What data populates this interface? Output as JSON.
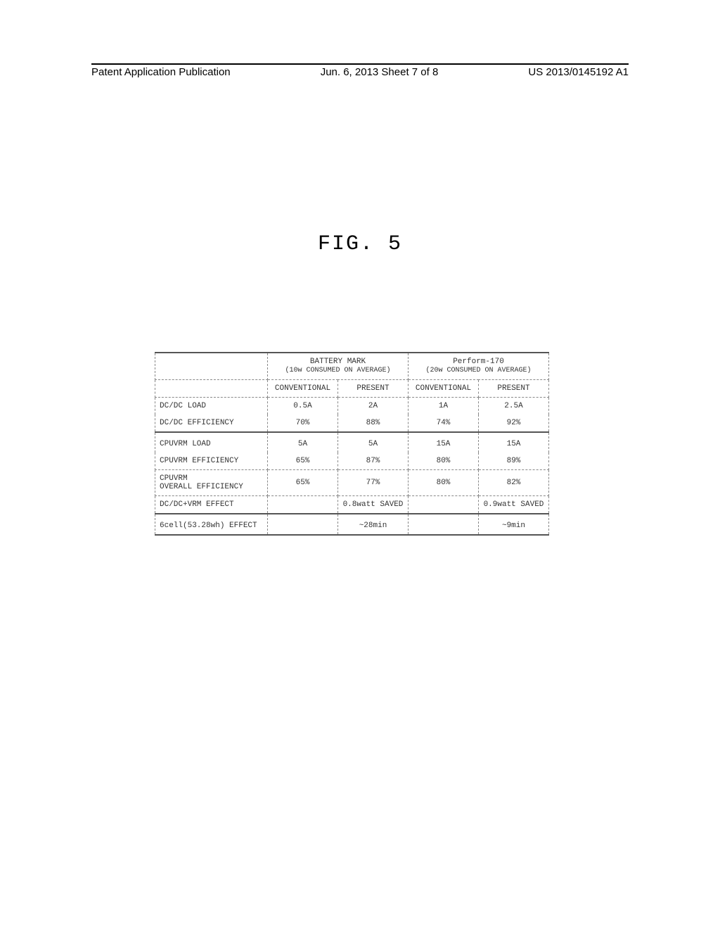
{
  "header": {
    "left": "Patent Application Publication",
    "center": "Jun. 6, 2013  Sheet 7 of 8",
    "right": "US 2013/0145192 A1"
  },
  "figure_label": "FIG. 5",
  "table": {
    "group_headers": {
      "g1_title": "BATTERY MARK",
      "g1_sub": "(10w CONSUMED ON AVERAGE)",
      "g2_title": "Perform-170",
      "g2_sub": "(20w CONSUMED ON AVERAGE)"
    },
    "sub_headers": {
      "c1": "CONVENTIONAL",
      "c2": "PRESENT",
      "c3": "CONVENTIONAL",
      "c4": "PRESENT"
    },
    "rows": {
      "r1": {
        "label": "DC/DC LOAD",
        "c1": "0.5A",
        "c2": "2A",
        "c3": "1A",
        "c4": "2.5A"
      },
      "r2": {
        "label": "DC/DC EFFICIENCY",
        "c1": "70%",
        "c2": "88%",
        "c3": "74%",
        "c4": "92%"
      },
      "r3": {
        "label": "CPUVRM LOAD",
        "c1": "5A",
        "c2": "5A",
        "c3": "15A",
        "c4": "15A"
      },
      "r4": {
        "label": "CPUVRM EFFICIENCY",
        "c1": "65%",
        "c2": "87%",
        "c3": "80%",
        "c4": "89%"
      },
      "r5": {
        "label": "CPUVRM\nOVERALL EFFICIENCY",
        "c1": "65%",
        "c2": "77%",
        "c3": "80%",
        "c4": "82%"
      },
      "r6": {
        "label": "DC/DC+VRM EFFECT",
        "c1": "",
        "c2": "0.8watt SAVED",
        "c3": "",
        "c4": "0.9watt SAVED"
      },
      "r7": {
        "label": "6cell(53.28wh) EFFECT",
        "c1": "",
        "c2": "~28min",
        "c3": "",
        "c4": "~9min"
      }
    }
  }
}
